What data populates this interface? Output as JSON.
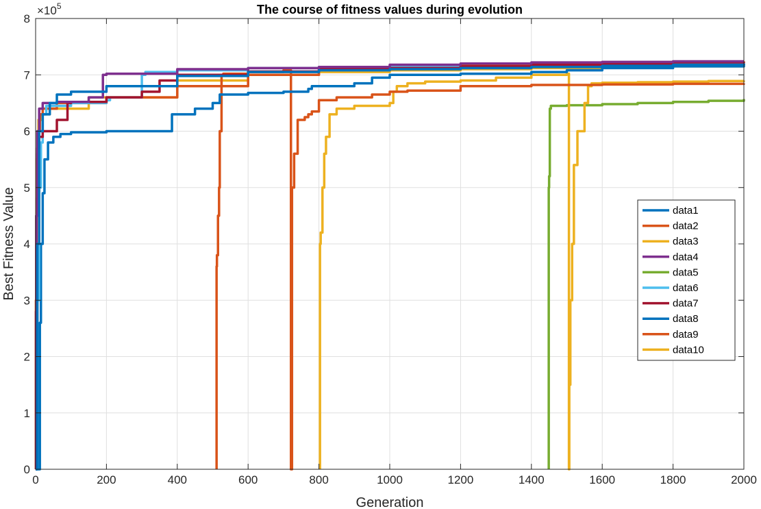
{
  "chart_data": {
    "type": "line",
    "title": "The course of fitness values during evolution",
    "xlabel": "Generation",
    "ylabel": "Best Fitness Value",
    "xlim": [
      0,
      2000
    ],
    "ylim": [
      0,
      800000
    ],
    "xticks": [
      "0",
      "200",
      "400",
      "600",
      "800",
      "1000",
      "1200",
      "1400",
      "1600",
      "1800",
      "2000"
    ],
    "yticks": [
      "0",
      "1",
      "2",
      "3",
      "4",
      "5",
      "6",
      "7",
      "8"
    ],
    "y_exponent": {
      "base": "×10",
      "power": "5"
    },
    "grid": true,
    "legend_position": "right",
    "series": [
      {
        "name": "data1",
        "color": "#0072BD",
        "x": [
          0,
          10,
          12,
          15,
          20,
          25,
          35,
          50,
          70,
          100,
          200,
          380,
          385,
          450,
          500,
          520,
          600,
          700,
          770,
          780,
          900,
          950,
          1000,
          1200,
          1400,
          1500,
          1600,
          1800,
          2000
        ],
        "y": [
          0,
          0,
          260000,
          400000,
          490000,
          550000,
          580000,
          590000,
          595000,
          598000,
          600000,
          600000,
          630000,
          640000,
          650000,
          665000,
          668000,
          670000,
          675000,
          680000,
          685000,
          695000,
          700000,
          702000,
          705000,
          708000,
          712000,
          715000,
          720000
        ]
      },
      {
        "name": "data2",
        "color": "#D95319",
        "x": [
          0,
          1,
          2,
          3,
          5,
          8,
          12,
          20,
          60,
          200,
          400,
          600,
          800,
          1000,
          1200,
          1400,
          1600,
          1800,
          2000
        ],
        "y": [
          0,
          300000,
          400000,
          480000,
          560000,
          600000,
          630000,
          640000,
          650000,
          660000,
          680000,
          700000,
          710000,
          715000,
          718000,
          720000,
          722000,
          723000,
          724000
        ]
      },
      {
        "name": "data3",
        "color": "#EDB120",
        "x": [
          0,
          1,
          2,
          3,
          5,
          8,
          15,
          40,
          150,
          400,
          600,
          800,
          1000,
          1200,
          1400,
          1600,
          1800,
          2000
        ],
        "y": [
          0,
          300000,
          450000,
          550000,
          600000,
          620000,
          630000,
          640000,
          660000,
          690000,
          700000,
          705000,
          708000,
          710000,
          712000,
          714000,
          715000,
          716000
        ]
      },
      {
        "name": "data4",
        "color": "#7E2F8E",
        "x": [
          0,
          2,
          5,
          10,
          20,
          60,
          150,
          190,
          200,
          400,
          600,
          800,
          1000,
          1200,
          1400,
          1600,
          1800,
          2000
        ],
        "y": [
          0,
          450000,
          600000,
          640000,
          650000,
          652000,
          660000,
          700000,
          702000,
          710000,
          712000,
          714000,
          718000,
          720000,
          722000,
          723000,
          724000,
          724000
        ]
      },
      {
        "name": "data5",
        "color": "#77AC30",
        "x": [
          1449,
          1449,
          1450,
          1452,
          1455,
          1470,
          1500,
          1600,
          1700,
          1800,
          1900,
          2000
        ],
        "y": [
          0,
          500000,
          520000,
          640000,
          645000,
          645000,
          646000,
          648000,
          650000,
          652000,
          654000,
          657000
        ]
      },
      {
        "name": "data6",
        "color": "#4DBEEE",
        "x": [
          0,
          5,
          10,
          15,
          20,
          30,
          100,
          200,
          210,
          300,
          310,
          400,
          600,
          800,
          1000,
          1200
        ],
        "y": [
          0,
          300000,
          500000,
          580000,
          630000,
          645000,
          650000,
          655000,
          660000,
          700000,
          705000,
          708000,
          712000,
          714000,
          715000,
          716000
        ]
      },
      {
        "name": "data7",
        "color": "#A2142F",
        "x": [
          0,
          1,
          2,
          5,
          10,
          20,
          60,
          90,
          100,
          200,
          300,
          350,
          400,
          600,
          800,
          1000,
          1200,
          1400,
          1600,
          1800,
          2000
        ],
        "y": [
          0,
          280000,
          450000,
          570000,
          590000,
          600000,
          620000,
          650000,
          652000,
          660000,
          670000,
          690000,
          700000,
          706000,
          710000,
          712000,
          715000,
          718000,
          720000,
          722000,
          723000
        ]
      },
      {
        "name": "data8",
        "color": "#0072BD",
        "x": [
          0,
          5,
          10,
          20,
          40,
          60,
          100,
          200,
          400,
          600,
          800,
          1000,
          1200,
          1400,
          1600,
          1800,
          2000
        ],
        "y": [
          0,
          400000,
          600000,
          630000,
          650000,
          665000,
          670000,
          680000,
          698000,
          705000,
          708000,
          710000,
          712000,
          714000,
          716000,
          718000,
          720000
        ]
      },
      {
        "name": "data9",
        "color": "#D95319",
        "x": [
          511,
          511,
          512,
          515,
          518,
          520,
          525,
          530,
          600,
          700,
          715,
          720,
          721,
          724,
          730,
          740,
          760,
          770,
          780,
          800,
          850,
          950,
          1000,
          1050,
          1200,
          1400,
          1600,
          1800,
          2000
        ],
        "y": [
          0,
          360000,
          380000,
          450000,
          500000,
          600000,
          700000,
          702000,
          705000,
          708000,
          708000,
          708000,
          0,
          500000,
          560000,
          620000,
          625000,
          630000,
          635000,
          655000,
          660000,
          665000,
          670000,
          672000,
          680000,
          682000,
          683000,
          684000,
          685000
        ]
      },
      {
        "name": "data10",
        "color": "#EDB120",
        "x": [
          803,
          803,
          805,
          810,
          815,
          820,
          830,
          850,
          900,
          1000,
          1010,
          1020,
          1050,
          1100,
          1200,
          1300,
          1400,
          1500,
          1506,
          1507,
          1510,
          1515,
          1520,
          1530,
          1550,
          1560,
          1570,
          1600,
          1700,
          1800,
          1900,
          2000
        ],
        "y": [
          0,
          400000,
          420000,
          500000,
          560000,
          590000,
          630000,
          640000,
          645000,
          650000,
          670000,
          680000,
          685000,
          688000,
          690000,
          695000,
          700000,
          702000,
          0,
          150000,
          300000,
          400000,
          540000,
          600000,
          650000,
          680000,
          685000,
          686000,
          687000,
          688000,
          689000,
          690000
        ]
      }
    ]
  }
}
